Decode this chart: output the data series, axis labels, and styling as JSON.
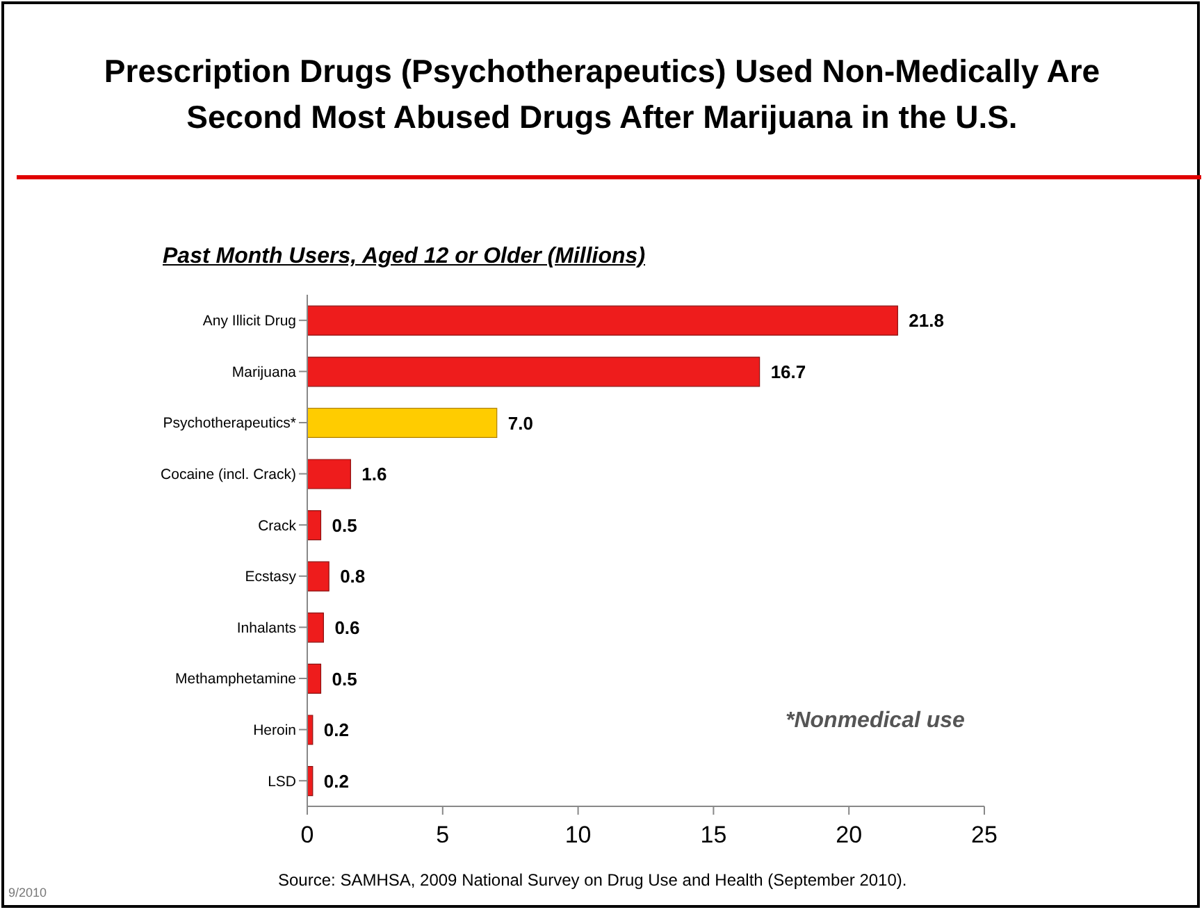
{
  "chart_data": {
    "type": "bar",
    "orientation": "horizontal",
    "title": "Prescription Drugs (Psychotherapeutics) Used Non-Medically Are Second Most Abused Drugs After Marijuana in the U.S.",
    "subtitle": "Past Month Users, Aged 12 or Older (Millions)",
    "categories": [
      "Any Illicit Drug",
      "Marijuana",
      "Psychotherapeutics*",
      "Cocaine (incl. Crack)",
      "Crack",
      "Ecstasy",
      "Inhalants",
      "Methamphetamine",
      "Heroin",
      "LSD"
    ],
    "values": [
      21.8,
      16.7,
      7.0,
      1.6,
      0.5,
      0.8,
      0.6,
      0.5,
      0.2,
      0.2
    ],
    "value_labels": [
      "21.8",
      "16.7",
      "7.0",
      "1.6",
      "0.5",
      "0.8",
      "0.6",
      "0.5",
      "0.2",
      "0.2"
    ],
    "colors": [
      "#ee1c1c",
      "#ee1c1c",
      "#ffcc00",
      "#ee1c1c",
      "#ee1c1c",
      "#ee1c1c",
      "#ee1c1c",
      "#ee1c1c",
      "#ee1c1c",
      "#ee1c1c"
    ],
    "xlim": [
      0,
      25
    ],
    "xticks": [
      0,
      5,
      10,
      15,
      20,
      25
    ],
    "grid": false,
    "legend": false,
    "annotations": [
      "*Nonmedical use",
      "Source:  SAMHSA, 2009 National Survey on Drug Use and Health (September 2010).",
      "9/2010"
    ]
  }
}
